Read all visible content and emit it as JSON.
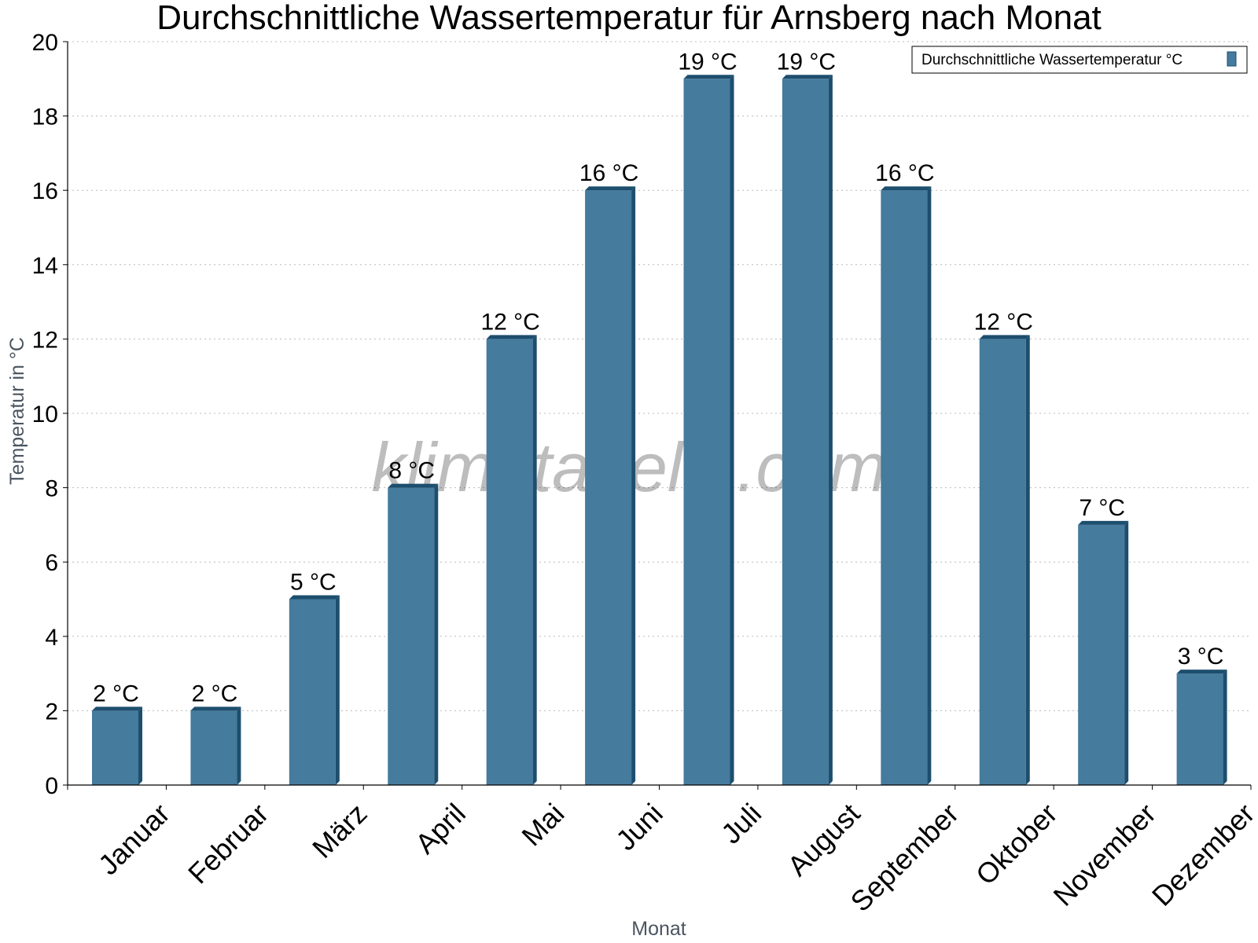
{
  "chart_data": {
    "type": "bar",
    "title": "Durchschnittliche Wassertemperatur für Arnsberg nach Monat",
    "xlabel": "Monat",
    "ylabel": "Temperatur in °C",
    "categories": [
      "Januar",
      "Februar",
      "März",
      "April",
      "Mai",
      "Juni",
      "Juli",
      "August",
      "September",
      "Oktober",
      "November",
      "Dezember"
    ],
    "series": [
      {
        "name": "Durchschnittliche Wassertemperatur °C",
        "values": [
          2,
          2,
          5,
          8,
          12,
          16,
          19,
          19,
          16,
          12,
          7,
          3
        ],
        "data_labels": [
          "2 °C",
          "2 °C",
          "5 °C",
          "8 °C",
          "12 °C",
          "16 °C",
          "19 °C",
          "19 °C",
          "16 °C",
          "12 °C",
          "7 °C",
          "3 °C"
        ]
      }
    ],
    "ylim": [
      0,
      20
    ],
    "yticks": [
      0,
      2,
      4,
      6,
      8,
      10,
      12,
      14,
      16,
      18,
      20
    ],
    "grid": "horizontal dotted",
    "legend_position": "top-right",
    "bar_color": "#457b9d",
    "bar_side_color": "#1d4e6e",
    "watermark": "klimatabelle.com"
  }
}
